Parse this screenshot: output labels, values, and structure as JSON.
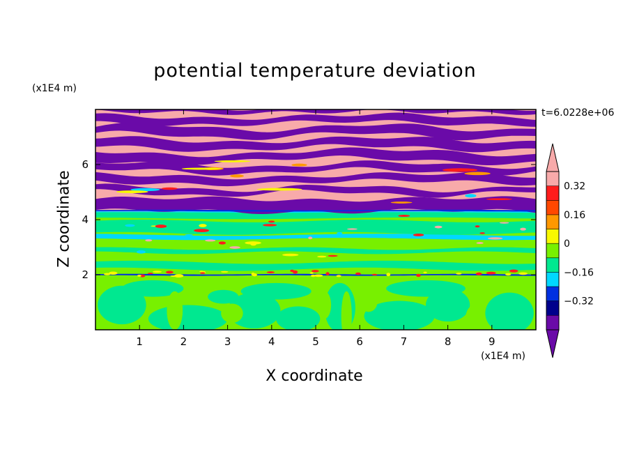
{
  "chart_data": {
    "type": "heatmap",
    "title": "potential temperature deviation",
    "xlabel": "X coordinate",
    "ylabel": "Z coordinate",
    "x_unit": "(x1E4 m)",
    "z_unit": "(x1E4 m)",
    "annotation": "t=6.0228e+06",
    "x_ticks": [
      1,
      2,
      3,
      4,
      5,
      6,
      7,
      8,
      9
    ],
    "z_ticks": [
      2,
      4,
      6
    ],
    "xlim": [
      0,
      10
    ],
    "zlim": [
      0,
      8
    ],
    "colorbar": {
      "tick_labels": [
        "0.32",
        "0.16",
        "0",
        "−0.16",
        "−0.32"
      ],
      "levels": [
        -0.4,
        -0.32,
        -0.24,
        -0.16,
        -0.08,
        0,
        0.08,
        0.16,
        0.24,
        0.32,
        0.4
      ],
      "colors": [
        "#6a0aa8",
        "#00008c",
        "#0030e0",
        "#00d8ff",
        "#00e890",
        "#78f000",
        "#f8f800",
        "#ff9800",
        "#ff4800",
        "#ff1c1c",
        "#f8aaaa"
      ],
      "extend": "both"
    },
    "bands": [
      {
        "z_from": 0.0,
        "z_to": 1.9,
        "dominant": "mixed green / yellow-green convective cells"
      },
      {
        "z_from": 1.9,
        "z_to": 2.05,
        "dominant": "thin blue line with small red/yellow spots"
      },
      {
        "z_from": 2.05,
        "z_to": 4.2,
        "dominant": "yellow-green with green stripes and cyan lines"
      },
      {
        "z_from": 4.2,
        "z_to": 8.0,
        "dominant": "alternating pink and purple layers"
      }
    ]
  }
}
